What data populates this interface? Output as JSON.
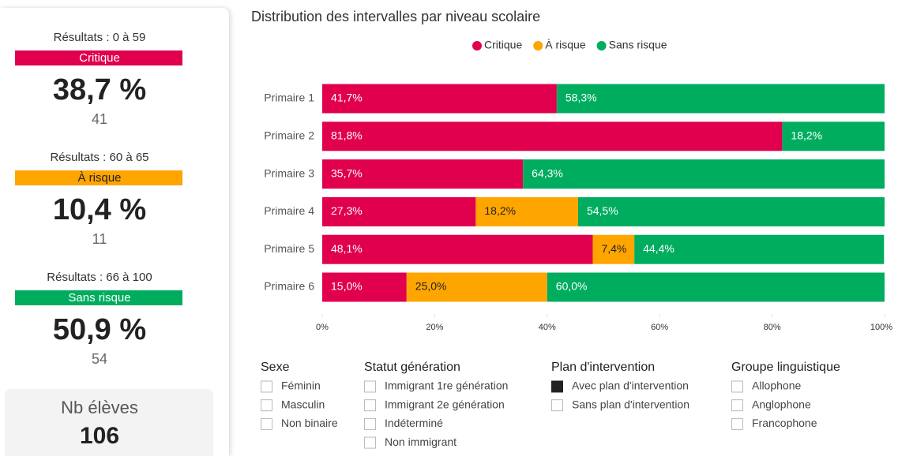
{
  "cards": [
    {
      "range": "Résultats : 0 à 59",
      "band": "Critique",
      "percent": "38,7 %",
      "count": "41",
      "color": "#e0004d"
    },
    {
      "range": "Résultats : 60 à 65",
      "band": "À risque",
      "percent": "10,4 %",
      "count": "11",
      "color": "#ffa500"
    },
    {
      "range": "Résultats : 66 à 100",
      "band": "Sans risque",
      "percent": "50,9 %",
      "count": "54",
      "color": "#00ad5f"
    }
  ],
  "total": {
    "label": "Nb élèves",
    "value": "106"
  },
  "chart_data": {
    "type": "stacked_bar_horizontal",
    "title": "Distribution des intervalles par niveau scolaire",
    "categories": [
      "Primaire 1",
      "Primaire 2",
      "Primaire 3",
      "Primaire 4",
      "Primaire 5",
      "Primaire 6"
    ],
    "series": [
      {
        "name": "Critique",
        "color": "#e0004d",
        "label_color": "#ffffff",
        "values": [
          41.7,
          81.8,
          35.7,
          27.3,
          48.1,
          15.0
        ],
        "value_labels": [
          "41,7%",
          "81,8%",
          "35,7%",
          "27,3%",
          "48,1%",
          "15,0%"
        ]
      },
      {
        "name": "À risque",
        "color": "#ffa500",
        "label_color": "#222222",
        "values": [
          null,
          null,
          null,
          18.2,
          7.4,
          25.0
        ],
        "value_labels": [
          null,
          null,
          null,
          "18,2%",
          "7,4%",
          "25,0%"
        ]
      },
      {
        "name": "Sans risque",
        "color": "#00ad5f",
        "label_color": "#ffffff",
        "values": [
          58.3,
          18.2,
          64.3,
          54.5,
          44.4,
          60.0
        ],
        "value_labels": [
          "58,3%",
          "18,2%",
          "64,3%",
          "54,5%",
          "44,4%",
          "60,0%"
        ]
      }
    ],
    "xlim": [
      0,
      100
    ],
    "xticks": [
      {
        "value": 0,
        "label": "0%"
      },
      {
        "value": 20,
        "label": "20%"
      },
      {
        "value": 40,
        "label": "40%"
      },
      {
        "value": 60,
        "label": "60%"
      },
      {
        "value": 80,
        "label": "80%"
      },
      {
        "value": 100,
        "label": "100%"
      }
    ],
    "legend": "top"
  },
  "filters": [
    {
      "title": "Sexe",
      "options": [
        {
          "label": "Féminin",
          "checked": false
        },
        {
          "label": "Masculin",
          "checked": false
        },
        {
          "label": "Non binaire",
          "checked": false
        }
      ]
    },
    {
      "title": "Statut génération",
      "options": [
        {
          "label": "Immigrant 1re génération",
          "checked": false
        },
        {
          "label": "Immigrant 2e génération",
          "checked": false
        },
        {
          "label": "Indéterminé",
          "checked": false
        },
        {
          "label": "Non immigrant",
          "checked": false
        }
      ]
    },
    {
      "title": "Plan d'intervention",
      "options": [
        {
          "label": "Avec plan d'intervention",
          "checked": true
        },
        {
          "label": "Sans plan d'intervention",
          "checked": false
        }
      ]
    },
    {
      "title": "Groupe linguistique",
      "options": [
        {
          "label": "Allophone",
          "checked": false
        },
        {
          "label": "Anglophone",
          "checked": false
        },
        {
          "label": "Francophone",
          "checked": false
        }
      ]
    }
  ]
}
